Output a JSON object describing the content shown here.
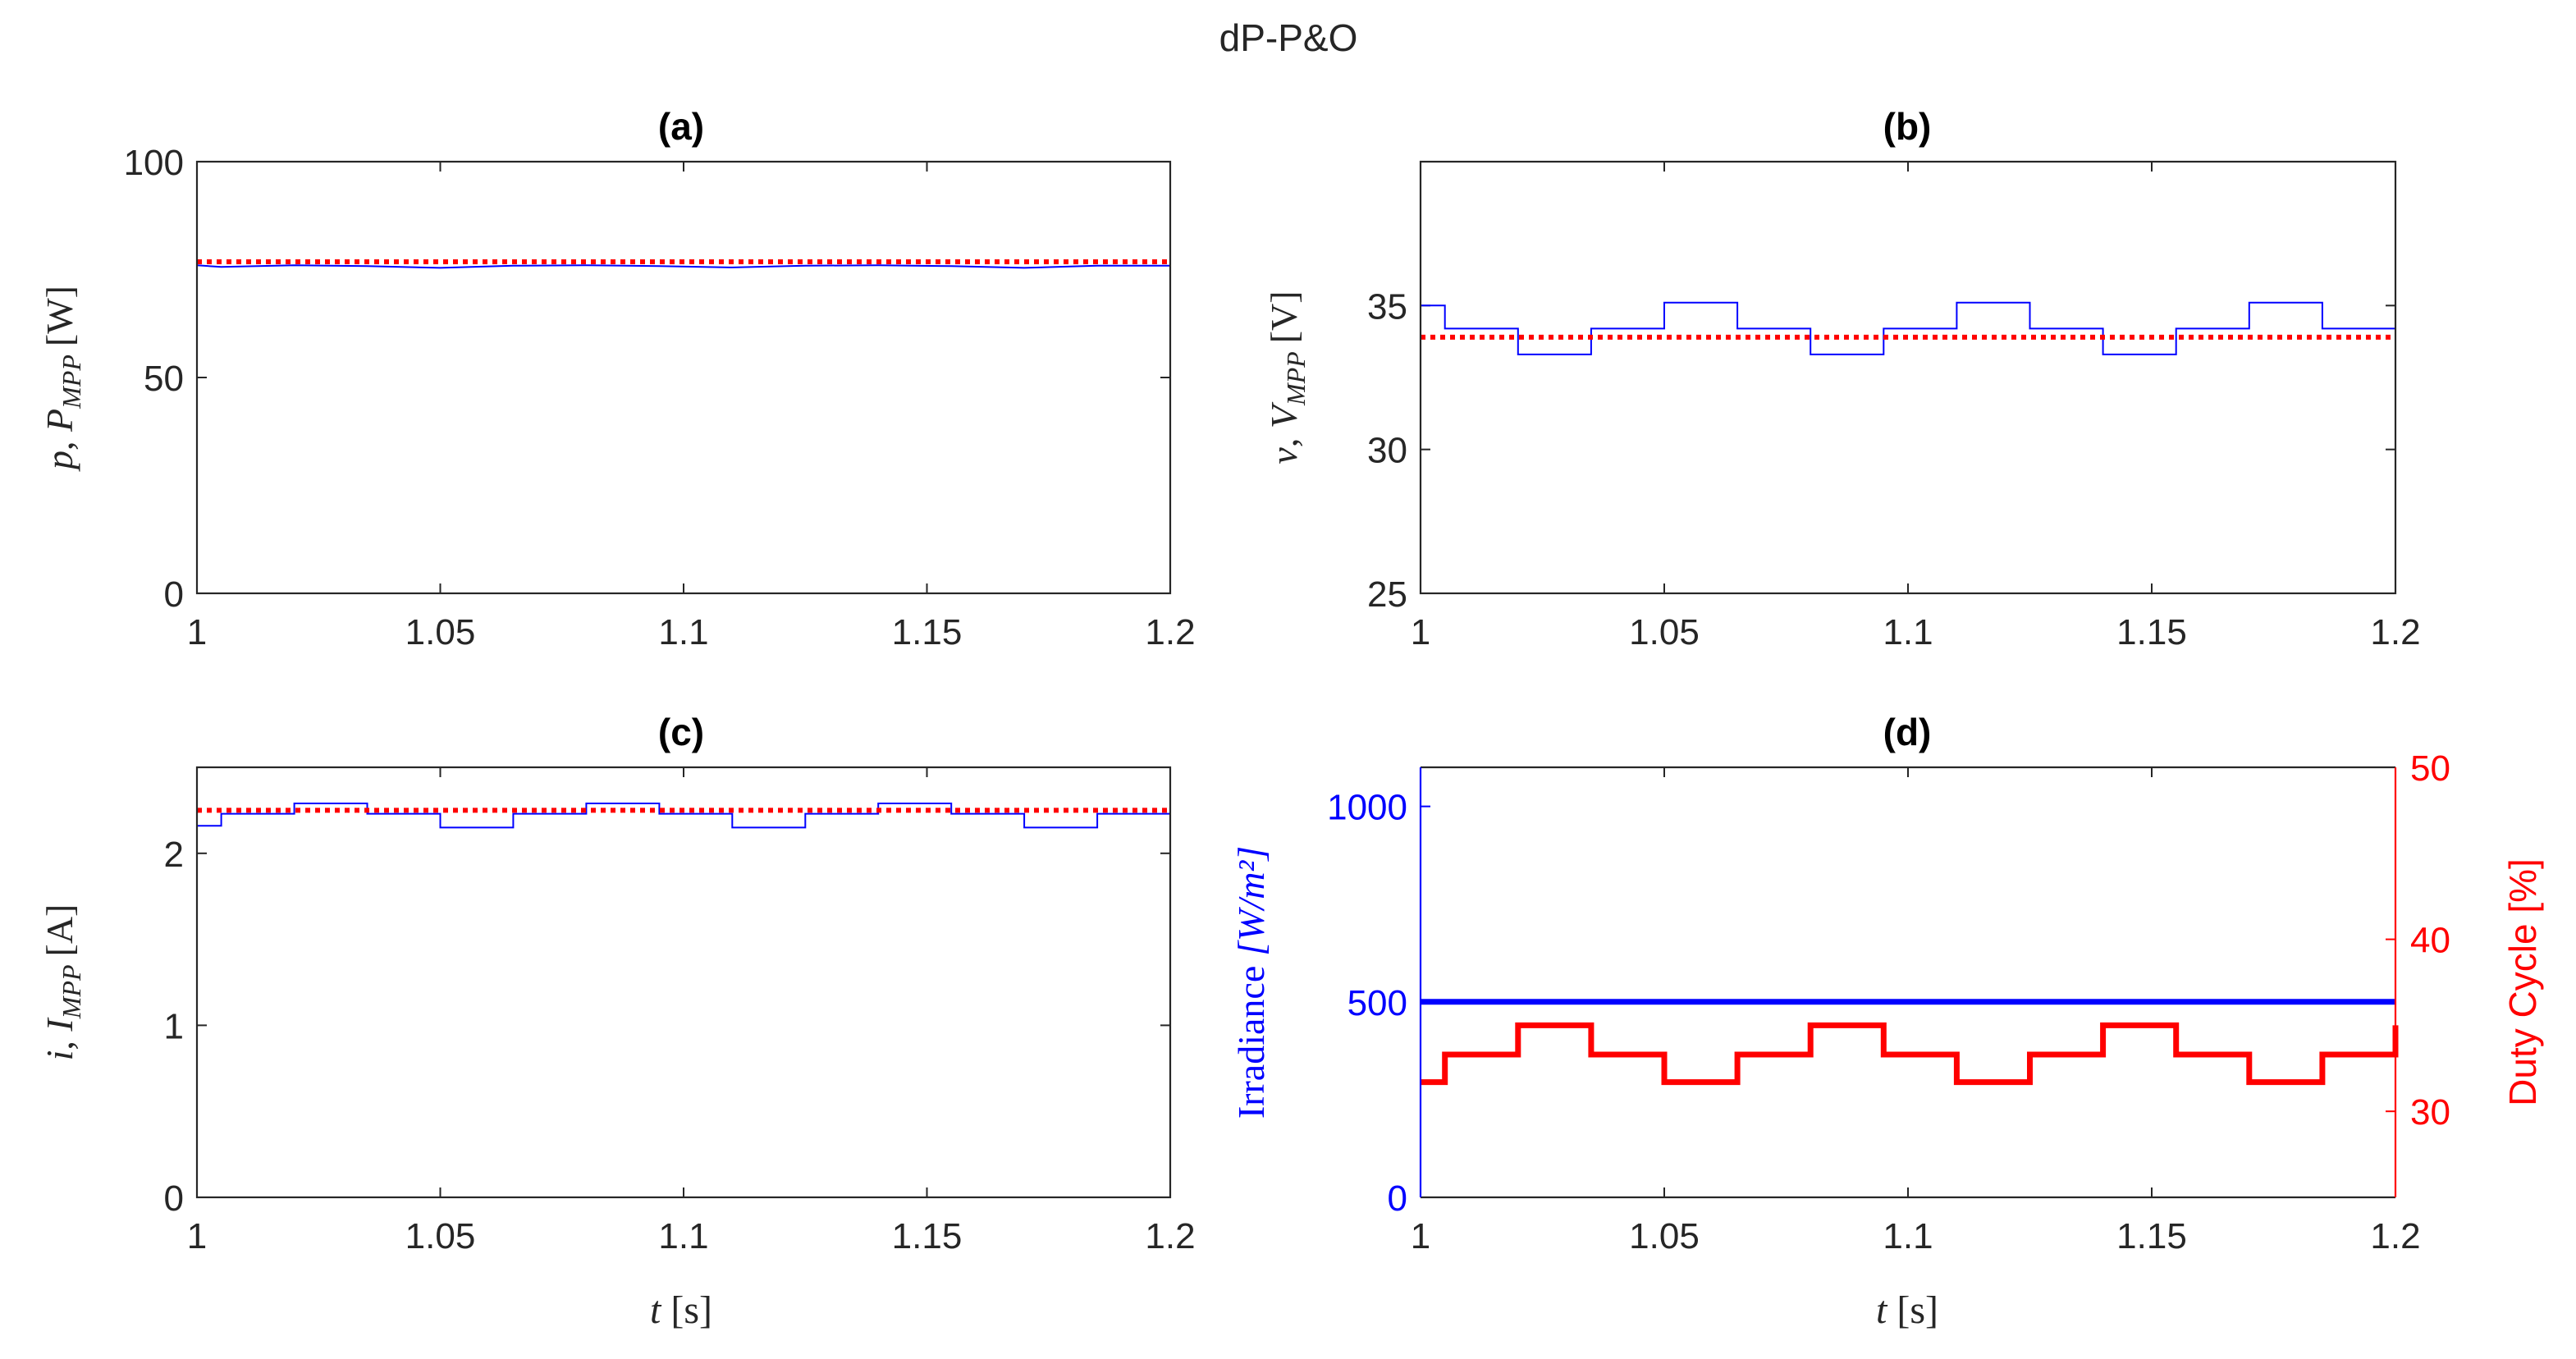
{
  "figure_title": "dP-P&O",
  "chart_data": [
    {
      "panel": "(a)",
      "type": "line",
      "title": "(a)",
      "ylabel": {
        "var": "p",
        "sub_var": "P",
        "sub": "MPP",
        "unit": "[W]"
      },
      "xlim": [
        1,
        1.2
      ],
      "ylim": [
        0,
        100
      ],
      "xticks": [
        1,
        1.05,
        1.1,
        1.15,
        1.2
      ],
      "xtick_labels": [
        "1",
        "1.05",
        "1.1",
        "1.15",
        "1.2"
      ],
      "yticks": [
        0,
        50,
        100
      ],
      "ytick_labels": [
        "0",
        "50",
        "100"
      ],
      "series": [
        {
          "name": "p",
          "style": "solid",
          "color": "#0000ff",
          "values": [
            [
              1.0,
              76.0
            ],
            [
              1.005,
              75.6
            ],
            [
              1.02,
              76.0
            ],
            [
              1.035,
              75.8
            ],
            [
              1.05,
              75.4
            ],
            [
              1.065,
              75.9
            ],
            [
              1.08,
              76.0
            ],
            [
              1.095,
              75.8
            ],
            [
              1.11,
              75.5
            ],
            [
              1.125,
              75.9
            ],
            [
              1.14,
              76.0
            ],
            [
              1.155,
              75.8
            ],
            [
              1.17,
              75.4
            ],
            [
              1.185,
              75.9
            ],
            [
              1.2,
              75.9
            ]
          ]
        },
        {
          "name": "P_MPP",
          "style": "dotted",
          "color": "#ff0000",
          "values": [
            [
              1.0,
              76.8
            ],
            [
              1.2,
              76.8
            ]
          ]
        }
      ]
    },
    {
      "panel": "(b)",
      "type": "line",
      "title": "(b)",
      "ylabel": {
        "var": "v",
        "sub_var": "V",
        "sub": "MPP",
        "unit": "[V]"
      },
      "xlim": [
        1,
        1.2
      ],
      "ylim": [
        25,
        40
      ],
      "xticks": [
        1,
        1.05,
        1.1,
        1.15,
        1.2
      ],
      "xtick_labels": [
        "1",
        "1.05",
        "1.1",
        "1.15",
        "1.2"
      ],
      "yticks": [
        25,
        30,
        35
      ],
      "ytick_labels": [
        "25",
        "30",
        "35"
      ],
      "series": [
        {
          "name": "v",
          "style": "solid",
          "color": "#0000ff",
          "steps": [
            [
              1.0,
              35.0
            ],
            [
              1.005,
              34.2
            ],
            [
              1.02,
              33.3
            ],
            [
              1.035,
              34.2
            ],
            [
              1.05,
              35.1
            ],
            [
              1.065,
              34.2
            ],
            [
              1.08,
              33.3
            ],
            [
              1.095,
              34.2
            ],
            [
              1.11,
              35.1
            ],
            [
              1.125,
              34.2
            ],
            [
              1.14,
              33.3
            ],
            [
              1.155,
              34.2
            ],
            [
              1.17,
              35.1
            ],
            [
              1.185,
              34.2
            ],
            [
              1.2,
              34.2
            ]
          ]
        },
        {
          "name": "V_MPP",
          "style": "dotted",
          "color": "#ff0000",
          "values": [
            [
              1.0,
              33.9
            ],
            [
              1.2,
              33.9
            ]
          ]
        }
      ]
    },
    {
      "panel": "(c)",
      "type": "line",
      "title": "(c)",
      "ylabel": {
        "var": "i",
        "sub_var": "I",
        "sub": "MPP",
        "unit": "[A]"
      },
      "xlabel": {
        "var": "t",
        "unit": "[s]"
      },
      "xlim": [
        1,
        1.2
      ],
      "ylim": [
        0,
        2.5
      ],
      "xticks": [
        1,
        1.05,
        1.1,
        1.15,
        1.2
      ],
      "xtick_labels": [
        "1",
        "1.05",
        "1.1",
        "1.15",
        "1.2"
      ],
      "yticks": [
        0,
        1,
        2
      ],
      "ytick_labels": [
        "0",
        "1",
        "2"
      ],
      "series": [
        {
          "name": "i",
          "style": "solid",
          "color": "#0000ff",
          "steps": [
            [
              1.0,
              2.16
            ],
            [
              1.005,
              2.23
            ],
            [
              1.02,
              2.29
            ],
            [
              1.035,
              2.23
            ],
            [
              1.05,
              2.15
            ],
            [
              1.065,
              2.23
            ],
            [
              1.08,
              2.29
            ],
            [
              1.095,
              2.23
            ],
            [
              1.11,
              2.15
            ],
            [
              1.125,
              2.23
            ],
            [
              1.14,
              2.29
            ],
            [
              1.155,
              2.23
            ],
            [
              1.17,
              2.15
            ],
            [
              1.185,
              2.23
            ],
            [
              1.2,
              2.23
            ]
          ]
        },
        {
          "name": "I_MPP",
          "style": "dotted",
          "color": "#ff0000",
          "values": [
            [
              1.0,
              2.25
            ],
            [
              1.2,
              2.25
            ]
          ]
        }
      ]
    },
    {
      "panel": "(d)",
      "type": "line",
      "title": "(d)",
      "xlabel": {
        "var": "t",
        "unit": "[s]"
      },
      "xlim": [
        1,
        1.2
      ],
      "xticks": [
        1,
        1.05,
        1.1,
        1.15,
        1.2
      ],
      "xtick_labels": [
        "1",
        "1.05",
        "1.1",
        "1.15",
        "1.2"
      ],
      "left_axis": {
        "label": "Irradiance",
        "unit": "[W/m²]",
        "color": "#0000ff",
        "ylim": [
          0,
          1100
        ],
        "yticks": [
          0,
          500,
          1000
        ],
        "ytick_labels": [
          "0",
          "500",
          "1000"
        ]
      },
      "right_axis": {
        "label": "Duty Cycle [%]",
        "color": "#ff0000",
        "ylim": [
          25,
          50
        ],
        "yticks": [
          30,
          40,
          50
        ],
        "ytick_labels": [
          "30",
          "40",
          "50"
        ]
      },
      "series": [
        {
          "name": "Irradiance",
          "axis": "left",
          "style": "solid",
          "color": "#0000ff",
          "values": [
            [
              1.0,
              500
            ],
            [
              1.2,
              500
            ]
          ]
        },
        {
          "name": "Duty Cycle",
          "axis": "right",
          "style": "solid",
          "color": "#ff0000",
          "steps": [
            [
              1.0,
              31.7
            ],
            [
              1.005,
              33.3
            ],
            [
              1.02,
              35.0
            ],
            [
              1.035,
              33.3
            ],
            [
              1.05,
              31.7
            ],
            [
              1.065,
              33.3
            ],
            [
              1.08,
              35.0
            ],
            [
              1.095,
              33.3
            ],
            [
              1.11,
              31.7
            ],
            [
              1.125,
              33.3
            ],
            [
              1.14,
              35.0
            ],
            [
              1.155,
              33.3
            ],
            [
              1.17,
              31.7
            ],
            [
              1.185,
              33.3
            ],
            [
              1.2,
              35.0
            ]
          ]
        }
      ]
    }
  ]
}
